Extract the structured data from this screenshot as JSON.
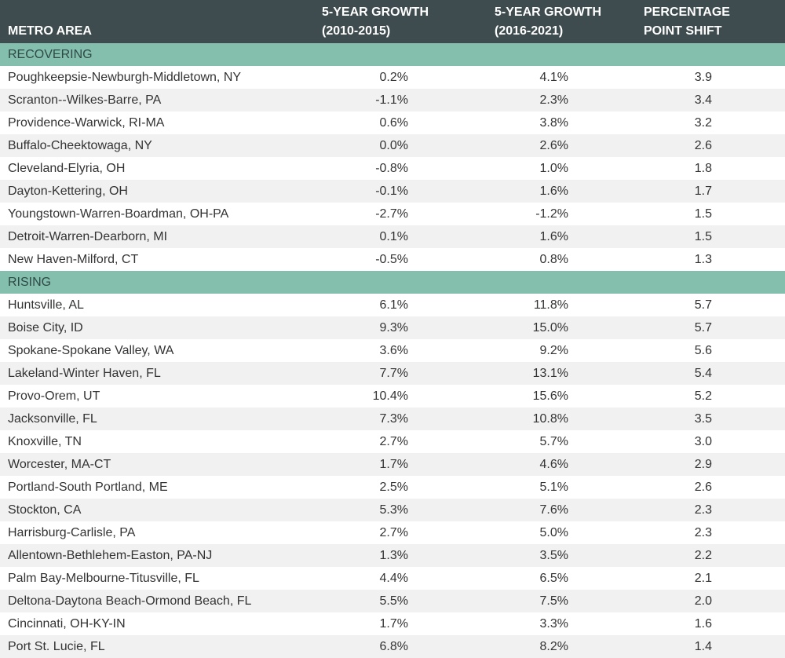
{
  "header": {
    "metro": "METRO AREA",
    "growth1_line1": "5-YEAR GROWTH",
    "growth1_line2": "(2010-2015)",
    "growth2_line1": "5-YEAR GROWTH",
    "growth2_line2": "(2016-2021)",
    "shift_line1": "PERCENTAGE",
    "shift_line2": "POINT SHIFT"
  },
  "sections": [
    {
      "label": "RECOVERING",
      "rows": [
        {
          "metro": "Poughkeepsie-Newburgh-Middletown, NY",
          "g1": "0.2%",
          "g2": "4.1%",
          "shift": "3.9"
        },
        {
          "metro": "Scranton--Wilkes-Barre, PA",
          "g1": "-1.1%",
          "g2": "2.3%",
          "shift": "3.4"
        },
        {
          "metro": "Providence-Warwick, RI-MA",
          "g1": "0.6%",
          "g2": "3.8%",
          "shift": "3.2"
        },
        {
          "metro": "Buffalo-Cheektowaga, NY",
          "g1": "0.0%",
          "g2": "2.6%",
          "shift": "2.6"
        },
        {
          "metro": "Cleveland-Elyria, OH",
          "g1": "-0.8%",
          "g2": "1.0%",
          "shift": "1.8"
        },
        {
          "metro": "Dayton-Kettering, OH",
          "g1": "-0.1%",
          "g2": "1.6%",
          "shift": "1.7"
        },
        {
          "metro": "Youngstown-Warren-Boardman, OH-PA",
          "g1": "-2.7%",
          "g2": "-1.2%",
          "shift": "1.5"
        },
        {
          "metro": "Detroit-Warren-Dearborn, MI",
          "g1": "0.1%",
          "g2": "1.6%",
          "shift": "1.5"
        },
        {
          "metro": "New Haven-Milford, CT",
          "g1": "-0.5%",
          "g2": "0.8%",
          "shift": "1.3"
        }
      ]
    },
    {
      "label": "RISING",
      "rows": [
        {
          "metro": "Huntsville, AL",
          "g1": "6.1%",
          "g2": "11.8%",
          "shift": "5.7"
        },
        {
          "metro": "Boise City, ID",
          "g1": "9.3%",
          "g2": "15.0%",
          "shift": "5.7"
        },
        {
          "metro": "Spokane-Spokane Valley, WA",
          "g1": "3.6%",
          "g2": "9.2%",
          "shift": "5.6"
        },
        {
          "metro": "Lakeland-Winter Haven, FL",
          "g1": "7.7%",
          "g2": "13.1%",
          "shift": "5.4"
        },
        {
          "metro": "Provo-Orem, UT",
          "g1": "10.4%",
          "g2": "15.6%",
          "shift": "5.2"
        },
        {
          "metro": "Jacksonville, FL",
          "g1": "7.3%",
          "g2": "10.8%",
          "shift": "3.5"
        },
        {
          "metro": "Knoxville, TN",
          "g1": "2.7%",
          "g2": "5.7%",
          "shift": "3.0"
        },
        {
          "metro": "Worcester, MA-CT",
          "g1": "1.7%",
          "g2": "4.6%",
          "shift": "2.9"
        },
        {
          "metro": "Portland-South Portland, ME",
          "g1": "2.5%",
          "g2": "5.1%",
          "shift": "2.6"
        },
        {
          "metro": "Stockton, CA",
          "g1": "5.3%",
          "g2": "7.6%",
          "shift": "2.3"
        },
        {
          "metro": "Harrisburg-Carlisle, PA",
          "g1": "2.7%",
          "g2": "5.0%",
          "shift": "2.3"
        },
        {
          "metro": "Allentown-Bethlehem-Easton, PA-NJ",
          "g1": "1.3%",
          "g2": "3.5%",
          "shift": "2.2"
        },
        {
          "metro": "Palm Bay-Melbourne-Titusville, FL",
          "g1": "4.4%",
          "g2": "6.5%",
          "shift": "2.1"
        },
        {
          "metro": "Deltona-Daytona Beach-Ormond Beach, FL",
          "g1": "5.5%",
          "g2": "7.5%",
          "shift": "2.0"
        },
        {
          "metro": "Cincinnati, OH-KY-IN",
          "g1": "1.7%",
          "g2": "3.3%",
          "shift": "1.6"
        },
        {
          "metro": "Port St. Lucie, FL",
          "g1": "6.8%",
          "g2": "8.2%",
          "shift": "1.4"
        }
      ]
    }
  ],
  "colors": {
    "header_bg": "#3e4b4f",
    "section_bg": "#84bfae",
    "alt_row_bg": "#f1f1f1"
  }
}
